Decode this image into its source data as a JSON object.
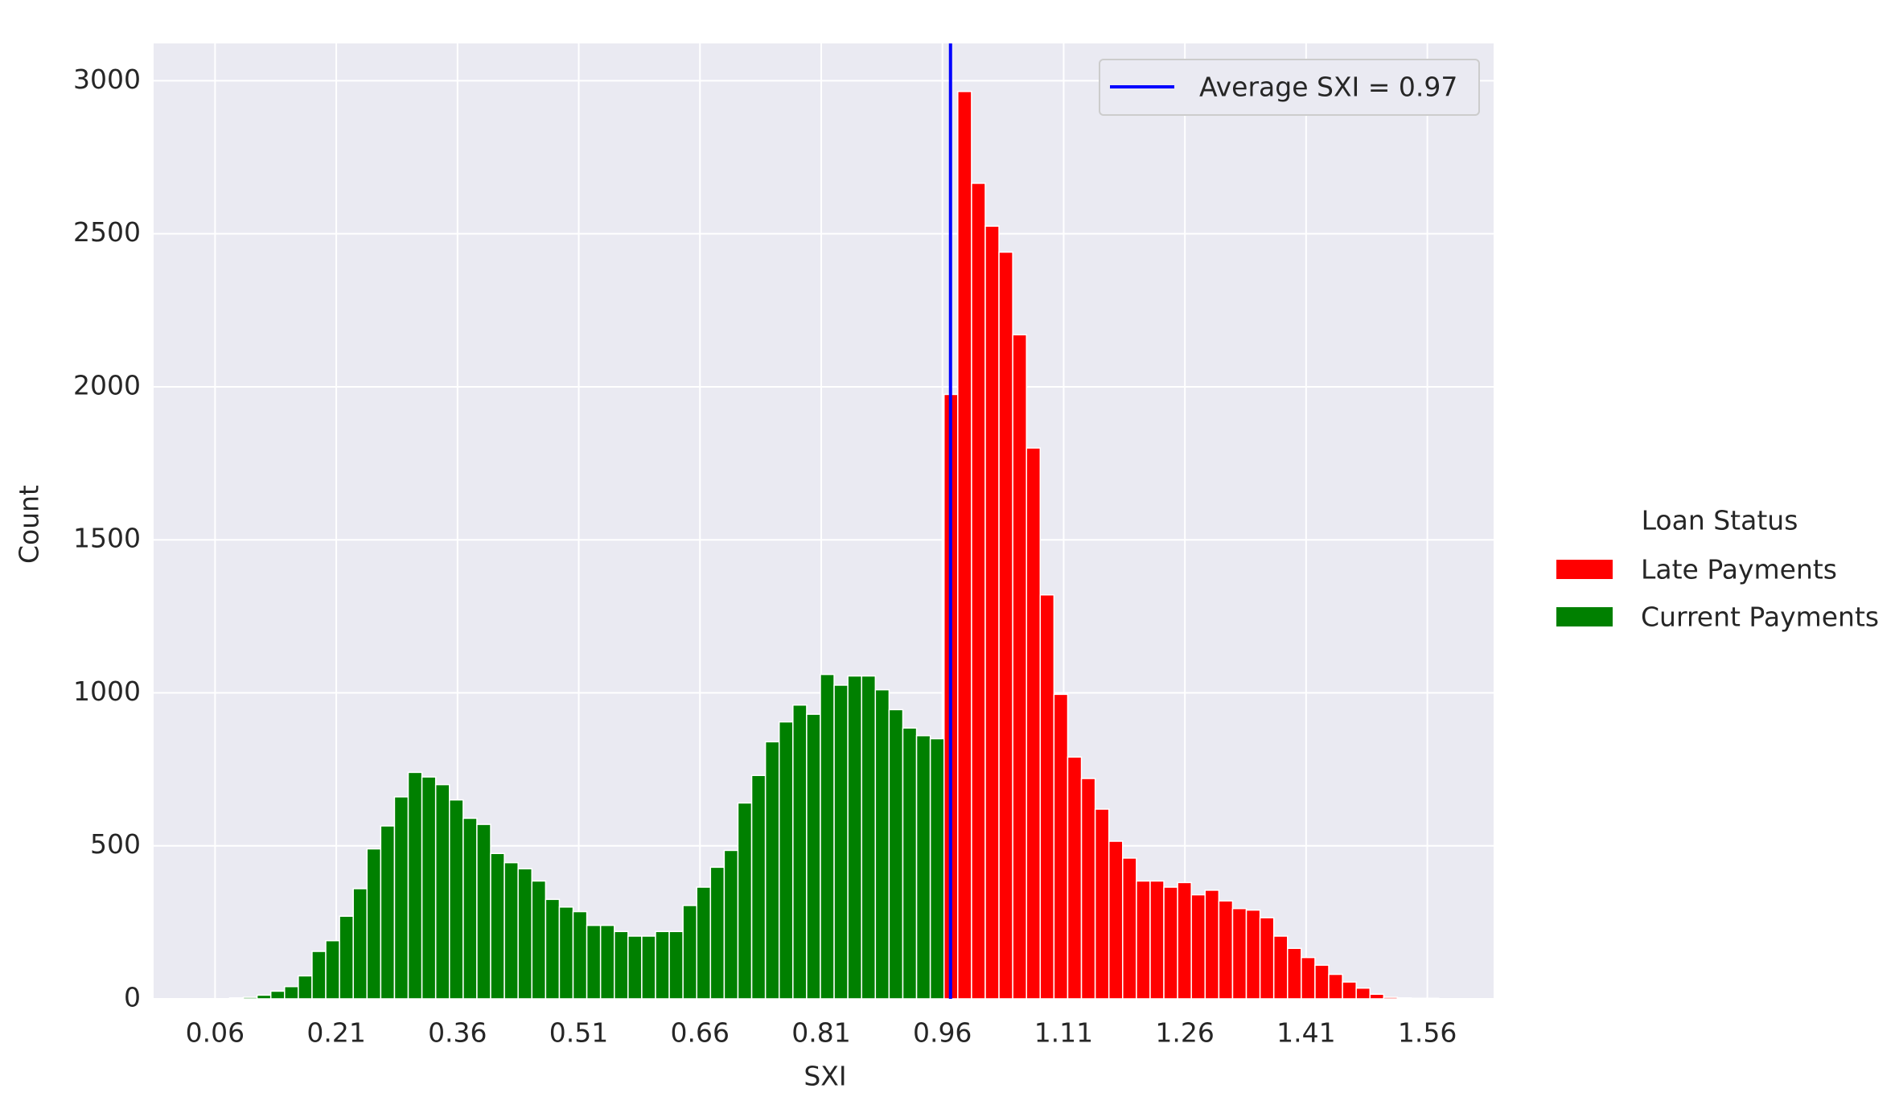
{
  "chart_data": {
    "type": "histogram",
    "x_label": "SXI",
    "y_label": "Count",
    "xlim": [
      -0.016,
      1.642
    ],
    "ylim": [
      0,
      3122
    ],
    "xticks": [
      0.06,
      0.21,
      0.36,
      0.51,
      0.66,
      0.81,
      0.96,
      1.11,
      1.26,
      1.41,
      1.56
    ],
    "yticks": [
      0,
      500,
      1000,
      1500,
      2000,
      2500,
      3000
    ],
    "grid": true,
    "legend_title": "Loan Status",
    "series": [
      {
        "name": "Late Payments",
        "color": "#ff0000",
        "bins": [
          0.962,
          0.979,
          0.996,
          1.013,
          1.03,
          1.047,
          1.064,
          1.081,
          1.098,
          1.115,
          1.132,
          1.149,
          1.166,
          1.183,
          1.2,
          1.217,
          1.234,
          1.251,
          1.268,
          1.285,
          1.302,
          1.319,
          1.336,
          1.353,
          1.37,
          1.387,
          1.404,
          1.421,
          1.438,
          1.455,
          1.472,
          1.489,
          1.506,
          1.523,
          1.54,
          1.557,
          1.574
        ],
        "values": [
          1975,
          2965,
          2665,
          2525,
          2440,
          2170,
          1800,
          1320,
          995,
          790,
          720,
          620,
          515,
          460,
          385,
          385,
          365,
          380,
          340,
          355,
          320,
          295,
          290,
          265,
          205,
          165,
          135,
          110,
          80,
          55,
          35,
          15,
          5,
          3,
          2,
          2
        ]
      },
      {
        "name": "Current Payments",
        "color": "#008000",
        "bins": [
          0.078,
          0.095,
          0.112,
          0.129,
          0.146,
          0.163,
          0.18,
          0.197,
          0.214,
          0.231,
          0.248,
          0.265,
          0.282,
          0.299,
          0.316,
          0.333,
          0.35,
          0.367,
          0.384,
          0.401,
          0.418,
          0.435,
          0.452,
          0.469,
          0.486,
          0.503,
          0.52,
          0.537,
          0.554,
          0.571,
          0.588,
          0.605,
          0.622,
          0.639,
          0.656,
          0.673,
          0.69,
          0.707,
          0.724,
          0.741,
          0.758,
          0.775,
          0.792,
          0.809,
          0.826,
          0.843,
          0.86,
          0.877,
          0.894,
          0.911,
          0.928,
          0.945,
          0.962
        ],
        "values": [
          3,
          5,
          12,
          25,
          40,
          75,
          155,
          190,
          270,
          360,
          490,
          565,
          660,
          740,
          725,
          700,
          650,
          590,
          570,
          475,
          445,
          425,
          385,
          325,
          300,
          285,
          240,
          240,
          220,
          205,
          205,
          220,
          220,
          305,
          365,
          430,
          485,
          640,
          730,
          840,
          905,
          960,
          930,
          1060,
          1025,
          1055,
          1055,
          1010,
          945,
          885,
          860,
          850
        ]
      }
    ],
    "vline": {
      "label": "Average SXI = 0.97",
      "value": 0.97,
      "color": "#0000ff"
    }
  }
}
